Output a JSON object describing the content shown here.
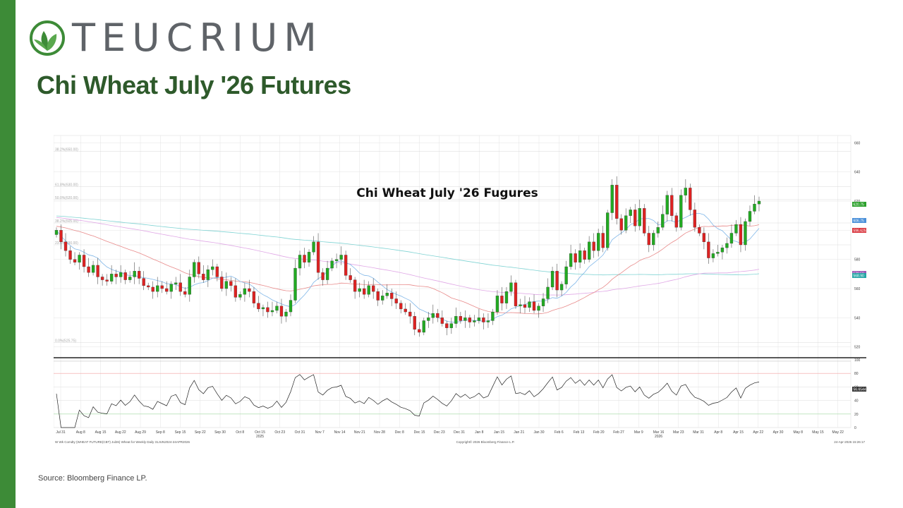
{
  "brand": {
    "name": "TEUCRIUM",
    "logo_icon": "leaf-circle-icon",
    "color": "#3d8b37"
  },
  "slide": {
    "title": "Chi Wheat July '26 Futures",
    "source": "Source: Bloomberg Finance LP."
  },
  "chart_data": {
    "type": "candlestick",
    "title": "Chi Wheat July '26 Fugures",
    "price_axis": {
      "ticks": [
        "660",
        "640",
        "620",
        "600",
        "580",
        "560",
        "540",
        "520"
      ],
      "range": [
        515,
        665
      ]
    },
    "oscillator_axis": {
      "ticks": [
        "100",
        "80",
        "60",
        "40",
        "20",
        "0"
      ],
      "range": [
        0,
        100
      ]
    },
    "x_ticks": [
      "Jul 31",
      "Aug 8",
      "Aug 15",
      "Aug 22",
      "Aug 29",
      "Sep 8",
      "Sep 15",
      "Sep 22",
      "Sep 30",
      "Oct 8",
      "Oct 15",
      "Oct 23",
      "Oct 31",
      "Nov 7",
      "Nov 14",
      "Nov 21",
      "Nov 28",
      "Dec 8",
      "Dec 15",
      "Dec 23",
      "Dec 31",
      "Jan 8",
      "Jan 15",
      "Jan 21",
      "Jan 30",
      "Feb 6",
      "Feb 13",
      "Feb 20",
      "Feb 27",
      "Mar 9",
      "Mar 16",
      "Mar 23",
      "Mar 31",
      "Apr 8",
      "Apr 15",
      "Apr 22",
      "Apr 30",
      "May 8",
      "May 15",
      "May 22"
    ],
    "year_labels": [
      {
        "label": "2025",
        "after": "Oct 15"
      },
      {
        "label": "2026",
        "after": "Mar 16"
      }
    ],
    "retracement_labels": [
      "38.2%(650.00)",
      "61.8%(630.00)",
      "50.0%(620.00)",
      "38.2%(605.00)",
      "23.6%(590.00)",
      "0.0%(525.75)"
    ],
    "last_values": [
      {
        "label": "620.75",
        "color": "#2ca02c"
      },
      {
        "label": "606.75",
        "color": "#4a90d9"
      },
      {
        "label": "596.625",
        "color": "#d9363e"
      },
      {
        "label": "570.50",
        "color": "#9b59b6"
      },
      {
        "label": "568.90",
        "color": "#26a6a6"
      },
      {
        "label": "56.6544",
        "color": "#333333"
      }
    ],
    "footer_left": "W Wk Comdty (WHEAT FUTURE(CBT) Jul26) Wheat for Weekly Daily 31JUN2024-24APR2026",
    "footer_center": "Copyright© 2026 Bloomberg Finance L.P.",
    "footer_right": "24-Apr-2026 15:26:17",
    "price_closes": [
      600,
      592,
      586,
      580,
      578,
      583,
      575,
      571,
      576,
      568,
      566,
      565,
      570,
      568,
      571,
      566,
      568,
      572,
      567,
      562,
      561,
      558,
      562,
      560,
      558,
      563,
      564,
      558,
      556,
      568,
      578,
      570,
      566,
      573,
      575,
      568,
      560,
      565,
      562,
      554,
      556,
      560,
      558,
      550,
      546,
      547,
      544,
      545,
      548,
      541,
      544,
      552,
      574,
      583,
      578,
      585,
      592,
      571,
      566,
      574,
      579,
      580,
      583,
      569,
      566,
      558,
      560,
      556,
      562,
      558,
      552,
      555,
      557,
      553,
      550,
      546,
      544,
      541,
      532,
      530,
      538,
      540,
      543,
      540,
      536,
      533,
      536,
      541,
      538,
      540,
      537,
      538,
      540,
      537,
      538,
      544,
      555,
      550,
      558,
      564,
      548,
      549,
      547,
      551,
      545,
      548,
      553,
      561,
      572,
      559,
      563,
      575,
      584,
      578,
      586,
      580,
      592,
      586,
      598,
      588,
      612,
      631,
      608,
      600,
      610,
      614,
      603,
      615,
      598,
      590,
      598,
      602,
      611,
      624,
      610,
      602,
      624,
      629,
      614,
      602,
      598,
      592,
      581,
      584,
      585,
      588,
      591,
      598,
      604,
      590,
      606,
      613,
      618,
      620
    ]
  }
}
